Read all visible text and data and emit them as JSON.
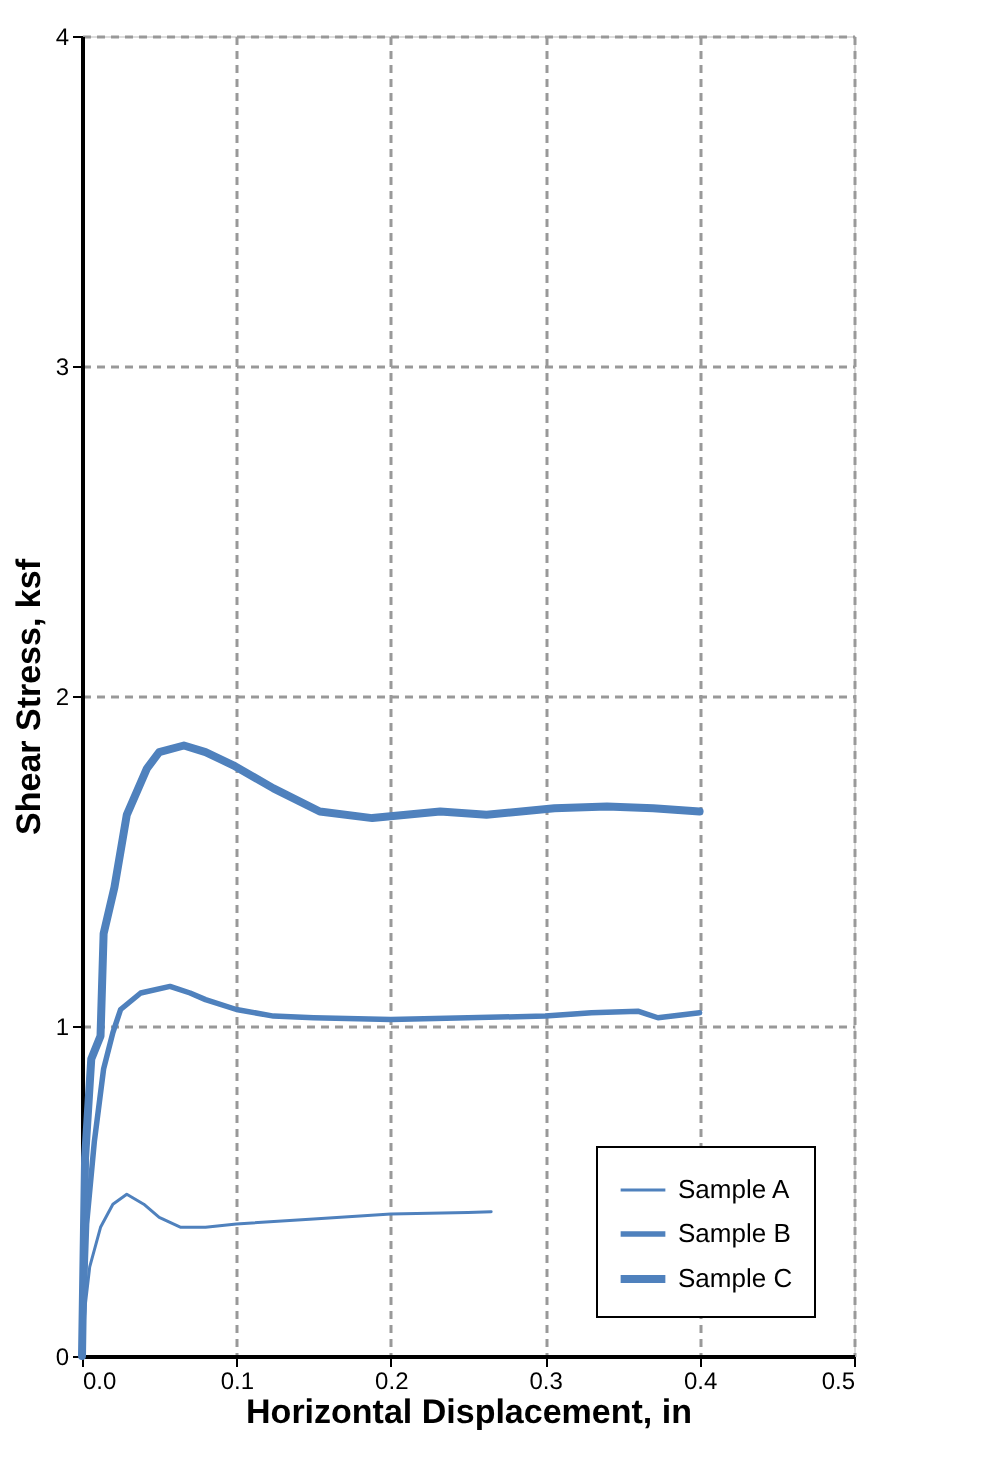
{
  "chart_data": {
    "type": "line",
    "xlabel": "Horizontal Displacement, in",
    "ylabel": "Shear Stress, ksf",
    "xlim": [
      0,
      0.5
    ],
    "xticks": [
      {
        "value": 0,
        "label": "0.0"
      },
      0.1,
      0.2,
      0.3,
      0.4,
      0.5
    ],
    "ylim": [
      0,
      4
    ],
    "yticks": [
      0,
      1,
      2,
      3,
      4
    ],
    "grid": true,
    "legend": "bottom right",
    "marker": "none",
    "line_style": "solid",
    "series": [
      {
        "name": "Sample A",
        "color": "#4f81bd",
        "x": [
          0,
          0.002,
          0.005,
          0.012,
          0.02,
          0.029,
          0.04,
          0.05,
          0.064,
          0.08,
          0.1,
          0.15,
          0.2,
          0.25,
          0.265
        ],
        "values": [
          0,
          0.15,
          0.27,
          0.39,
          0.46,
          0.49,
          0.46,
          0.42,
          0.39,
          0.39,
          0.4,
          0.415,
          0.43,
          0.435,
          0.437
        ]
      },
      {
        "name": "Sample B",
        "color": "#4f81bd",
        "x": [
          0,
          0.003,
          0.008,
          0.014,
          0.02,
          0.025,
          0.038,
          0.057,
          0.07,
          0.08,
          0.1,
          0.124,
          0.15,
          0.2,
          0.25,
          0.3,
          0.33,
          0.36,
          0.373,
          0.4
        ],
        "values": [
          0,
          0.4,
          0.65,
          0.87,
          0.98,
          1.05,
          1.1,
          1.12,
          1.1,
          1.08,
          1.05,
          1.03,
          1.025,
          1.02,
          1.025,
          1.03,
          1.04,
          1.045,
          1.025,
          1.04
        ]
      },
      {
        "name": "Sample C",
        "color": "#4f81bd",
        "x": [
          0,
          0.002,
          0.006,
          0.012,
          0.014,
          0.021,
          0.029,
          0.042,
          0.05,
          0.066,
          0.08,
          0.098,
          0.124,
          0.154,
          0.188,
          0.232,
          0.262,
          0.306,
          0.34,
          0.37,
          0.4
        ],
        "values": [
          0,
          0.6,
          0.9,
          0.97,
          1.28,
          1.42,
          1.64,
          1.78,
          1.83,
          1.85,
          1.83,
          1.79,
          1.72,
          1.65,
          1.63,
          1.65,
          1.64,
          1.66,
          1.665,
          1.66,
          1.65
        ]
      }
    ]
  }
}
